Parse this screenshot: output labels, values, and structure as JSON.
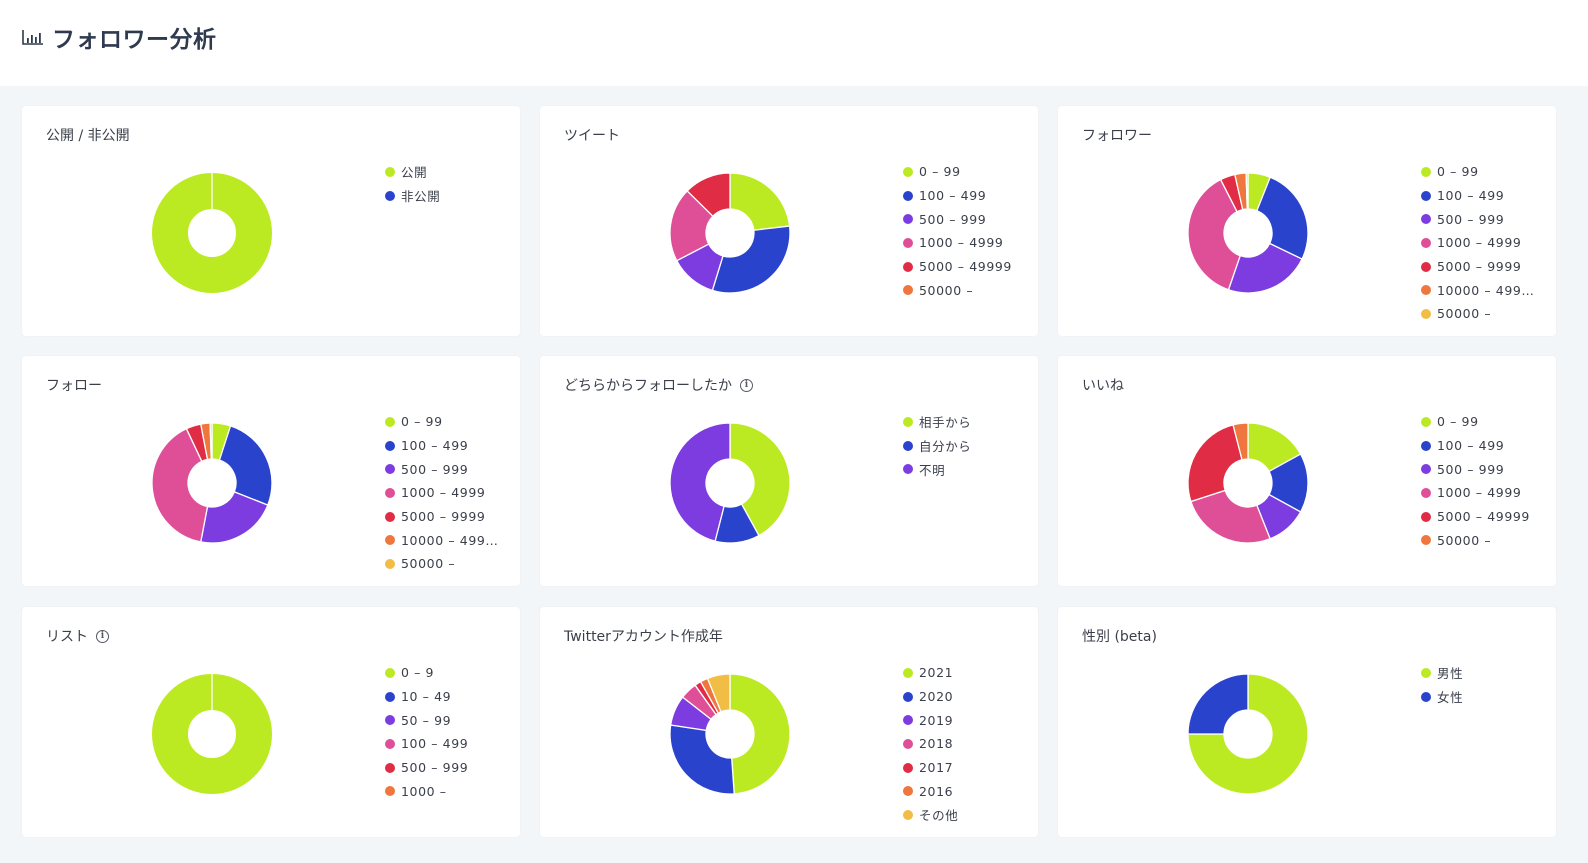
{
  "header": {
    "title": "フォロワー分析",
    "icon": "bar-chart-icon"
  },
  "colors": [
    "#bcea22",
    "#2a43cc",
    "#7d3ce0",
    "#df4f98",
    "#e02d45",
    "#ef763c",
    "#f1bd45"
  ],
  "chart_data": [
    {
      "type": "pie",
      "title": "公開 / 非公開",
      "info": false,
      "categories": [
        "公開",
        "非公開"
      ],
      "values": [
        100,
        0
      ]
    },
    {
      "type": "pie",
      "title": "ツイート",
      "info": false,
      "categories": [
        "0 – 99",
        "100 – 499",
        "500 – 999",
        "1000 – 4999",
        "5000 – 49999",
        "50000 –"
      ],
      "values": [
        22,
        30,
        12,
        19,
        12,
        0
      ]
    },
    {
      "type": "pie",
      "title": "フォロワー",
      "info": false,
      "categories": [
        "0 – 99",
        "100 – 499",
        "500 – 999",
        "1000 – 4999",
        "5000 – 9999",
        "10000 – 499…",
        "50000 –"
      ],
      "values": [
        6,
        26,
        23,
        37,
        4,
        3,
        0.5
      ]
    },
    {
      "type": "pie",
      "title": "フォロー",
      "info": false,
      "categories": [
        "0 – 99",
        "100 – 499",
        "500 – 999",
        "1000 – 4999",
        "5000 – 9999",
        "10000 – 499…",
        "50000 –"
      ],
      "values": [
        5,
        26,
        22,
        40,
        4,
        2.5,
        0.5
      ]
    },
    {
      "type": "pie",
      "title": "どちらからフォローしたか",
      "info": true,
      "categories": [
        "相手から",
        "自分から",
        "不明"
      ],
      "values": [
        42,
        12,
        46
      ]
    },
    {
      "type": "pie",
      "title": "いいね",
      "info": false,
      "categories": [
        "0 – 99",
        "100 – 499",
        "500 – 999",
        "1000 – 4999",
        "5000 – 49999",
        "50000 –"
      ],
      "values": [
        17,
        16,
        11,
        26,
        26,
        4
      ]
    },
    {
      "type": "pie",
      "title": "リスト",
      "info": true,
      "categories": [
        "0 – 9",
        "10 – 49",
        "50 – 99",
        "100 – 499",
        "500 – 999",
        "1000 –"
      ],
      "values": [
        100,
        0,
        0,
        0,
        0,
        0
      ]
    },
    {
      "type": "pie",
      "title": "Twitterアカウント作成年",
      "info": false,
      "categories": [
        "2021",
        "2020",
        "2019",
        "2018",
        "2017",
        "2016",
        "その他"
      ],
      "values": [
        48,
        28,
        8,
        4.5,
        1.7,
        2,
        6
      ]
    },
    {
      "type": "pie",
      "title": "性別 (beta)",
      "info": false,
      "categories": [
        "男性",
        "女性"
      ],
      "values": [
        75,
        25
      ]
    }
  ]
}
